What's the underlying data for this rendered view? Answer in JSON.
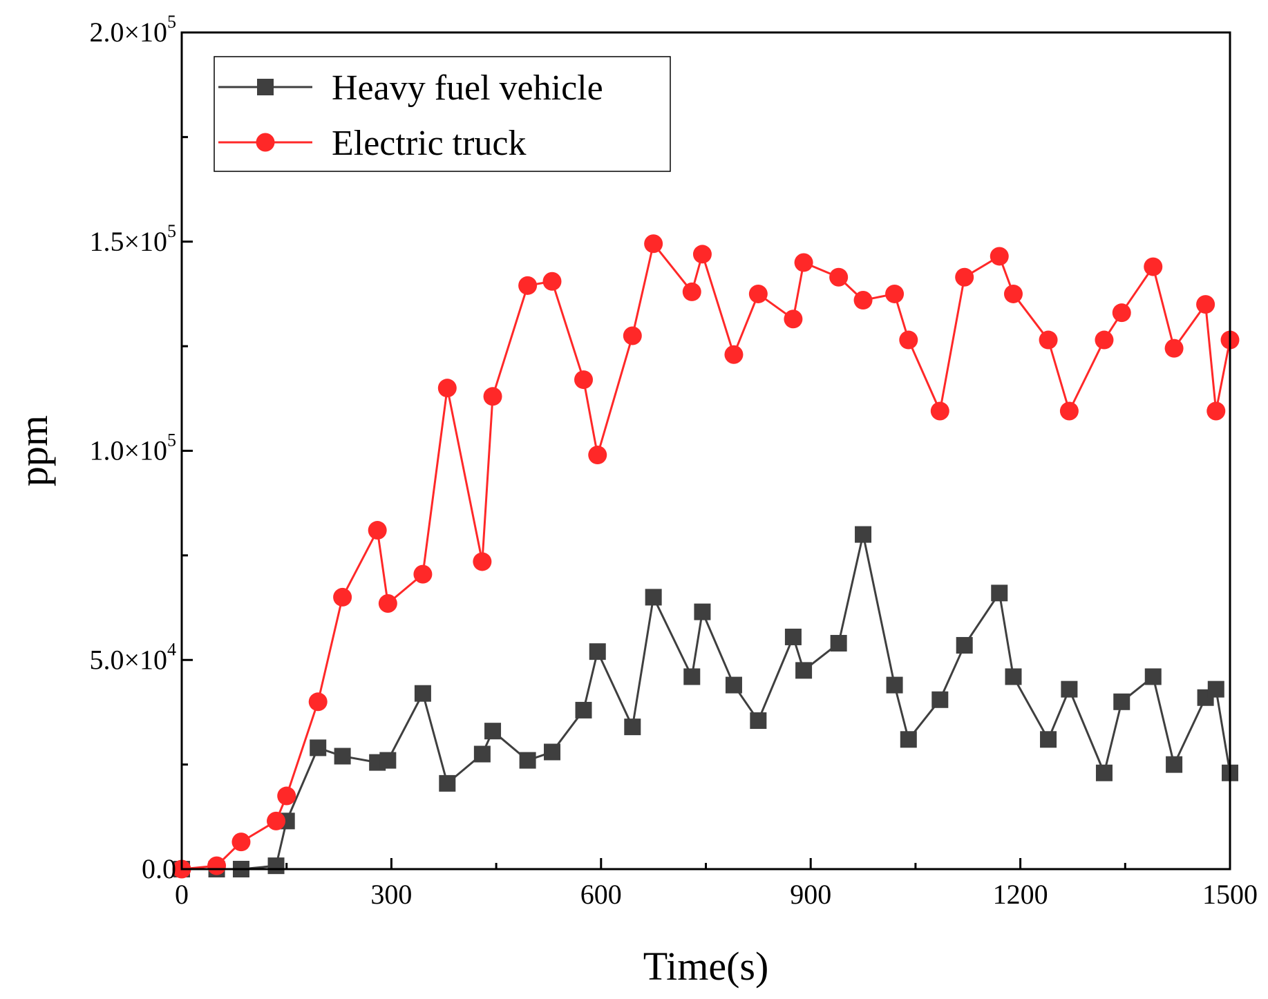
{
  "chart_data": {
    "type": "line",
    "title": "",
    "xlabel": "Time(s)",
    "ylabel": "ppm",
    "xlim": [
      0,
      1500
    ],
    "ylim": [
      0,
      200000
    ],
    "x_ticks": [
      0,
      300,
      600,
      900,
      1200,
      1500
    ],
    "x_tick_labels": [
      "0",
      "300",
      "600",
      "900",
      "1200",
      "1500"
    ],
    "y_ticks": [
      0,
      50000,
      100000,
      150000,
      200000
    ],
    "y_tick_labels": [
      {
        "mantissa": "0.0",
        "times": "",
        "exp": ""
      },
      {
        "mantissa": "5.0",
        "times": "×10",
        "exp": "4"
      },
      {
        "mantissa": "1.0",
        "times": "×10",
        "exp": "5"
      },
      {
        "mantissa": "1.5",
        "times": "×10",
        "exp": "5"
      },
      {
        "mantissa": "2.0",
        "times": "×10",
        "exp": "5"
      }
    ],
    "legend": "top-left",
    "grid": false,
    "series": [
      {
        "name": "Heavy fuel vehicle",
        "color": "#3f3f3f",
        "marker": "square",
        "x": [
          0,
          50,
          85,
          135,
          150,
          195,
          230,
          280,
          295,
          345,
          380,
          430,
          445,
          495,
          530,
          575,
          595,
          645,
          675,
          730,
          745,
          790,
          825,
          875,
          890,
          940,
          975,
          1020,
          1040,
          1085,
          1120,
          1170,
          1190,
          1240,
          1270,
          1320,
          1345,
          1390,
          1420,
          1465,
          1480,
          1500
        ],
        "y": [
          0,
          0,
          0,
          800,
          11500,
          29000,
          27000,
          25500,
          26000,
          42000,
          20500,
          27500,
          33000,
          26000,
          28000,
          38000,
          52000,
          34000,
          65000,
          46000,
          61500,
          44000,
          35500,
          55500,
          47500,
          54000,
          80000,
          44000,
          31000,
          40500,
          53500,
          66000,
          46000,
          31000,
          43000,
          23000,
          40000,
          46000,
          25000,
          41000,
          43000,
          23000
        ]
      },
      {
        "name": "Electric truck",
        "color": "#ff2828",
        "marker": "circle",
        "x": [
          0,
          50,
          85,
          135,
          150,
          195,
          230,
          280,
          295,
          345,
          380,
          430,
          445,
          495,
          530,
          575,
          595,
          645,
          675,
          730,
          745,
          790,
          825,
          875,
          890,
          940,
          975,
          1020,
          1040,
          1085,
          1120,
          1170,
          1190,
          1240,
          1270,
          1320,
          1345,
          1390,
          1420,
          1465,
          1480,
          1500
        ],
        "y": [
          0,
          800,
          6500,
          11500,
          17500,
          40000,
          65000,
          81000,
          63500,
          70500,
          115000,
          73500,
          113000,
          139500,
          140500,
          117000,
          99000,
          127500,
          149500,
          138000,
          147000,
          123000,
          137500,
          131500,
          145000,
          141500,
          136000,
          137500,
          126500,
          109500,
          141500,
          146500,
          137500,
          126500,
          109500,
          126500,
          133000,
          144000,
          124500,
          135000,
          109500,
          126500
        ]
      }
    ]
  }
}
